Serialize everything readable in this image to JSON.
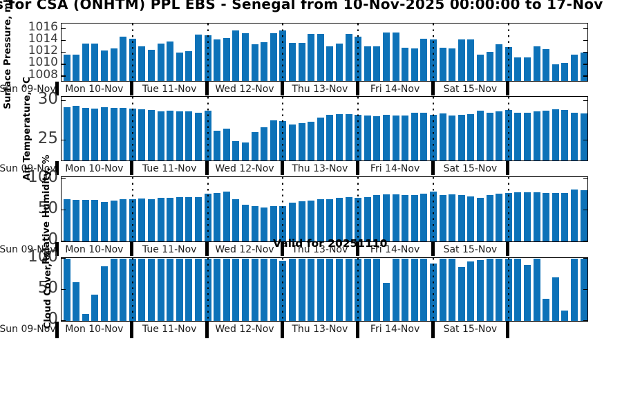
{
  "title": "s for CSA (ONHTM) PPL EBS  - Senegal from 10-Nov-2025 00:00:00 to 17-Nov",
  "valid_label": "Valid for 20251110",
  "colors": {
    "bar": "#0d72b8",
    "axis": "#000000",
    "tick_text": "#3d3d3d",
    "background": "#ffffff"
  },
  "x_axis": {
    "start_label": "Sun 09-Nov",
    "day_labels": [
      "Mon 10-Nov",
      "Tue 11-Nov",
      "Wed 12-Nov",
      "Thu 13-Nov",
      "Fri 14-Nov",
      "Sat 15-Nov"
    ],
    "interval_hours": 3,
    "bars_per_day": 8
  },
  "chart_data": [
    {
      "type": "bar",
      "ylabel": "Surface Pressure, mb",
      "yticks": [
        1008,
        1010,
        1012,
        1014,
        1016
      ],
      "ylim": [
        1007.2,
        1016.8
      ],
      "values": [
        1011.6,
        1011.6,
        1013.5,
        1013.5,
        1012.3,
        1012.7,
        1014.7,
        1014.3,
        1013.1,
        1012.5,
        1013.5,
        1013.9,
        1012.0,
        1012.2,
        1015.0,
        1014.9,
        1014.2,
        1014.4,
        1015.7,
        1015.3,
        1013.4,
        1013.8,
        1015.3,
        1015.7,
        1013.6,
        1013.6,
        1015.1,
        1015.1,
        1013.1,
        1013.5,
        1015.2,
        1014.7,
        1013.1,
        1013.1,
        1015.4,
        1015.4,
        1012.8,
        1012.7,
        1014.3,
        1014.2,
        1012.8,
        1012.7,
        1014.2,
        1014.2,
        1011.6,
        1012.1,
        1013.4,
        1012.9,
        1011.2,
        1011.2,
        1013.0,
        1012.6,
        1010.0,
        1010.2,
        1011.7,
        1012.0
      ]
    },
    {
      "type": "bar",
      "ylabel": "Air Temperature, °C",
      "yticks": [
        25,
        30
      ],
      "ylim": [
        22.4,
        30.4
      ],
      "values": [
        29.2,
        29.3,
        29.1,
        29.0,
        29.2,
        29.1,
        29.1,
        29.0,
        28.9,
        28.8,
        28.6,
        28.7,
        28.6,
        28.6,
        28.5,
        28.7,
        26.2,
        26.4,
        24.9,
        24.7,
        26.0,
        26.6,
        27.5,
        27.4,
        27.0,
        27.1,
        27.3,
        27.8,
        28.2,
        28.3,
        28.3,
        28.2,
        28.1,
        28.0,
        28.2,
        28.1,
        28.1,
        28.5,
        28.5,
        28.2,
        28.4,
        28.1,
        28.2,
        28.3,
        28.7,
        28.5,
        28.6,
        28.8,
        28.5,
        28.5,
        28.6,
        28.7,
        28.9,
        28.8,
        28.5,
        28.4
      ]
    },
    {
      "type": "bar",
      "ylabel": "Relative Humidity, %",
      "yticks": [
        0,
        50,
        100
      ],
      "ylim": [
        0,
        102
      ],
      "values": [
        67,
        66,
        66,
        66,
        63,
        65,
        67,
        67,
        69,
        68,
        70,
        70,
        71,
        71,
        71,
        76,
        78,
        80,
        67,
        59,
        56,
        54,
        56,
        57,
        62,
        64,
        65,
        67,
        68,
        70,
        71,
        70,
        71,
        74,
        75,
        75,
        74,
        74,
        76,
        80,
        74,
        75,
        74,
        72,
        70,
        74,
        76,
        78,
        79,
        79,
        79,
        78,
        77,
        78,
        83,
        82
      ]
    },
    {
      "type": "bar",
      "ylabel": "Cloud Cover, %",
      "yticks": [
        0,
        50,
        100
      ],
      "ylim": [
        0,
        100
      ],
      "values": [
        100,
        62,
        11,
        42,
        88,
        100,
        100,
        100,
        100,
        100,
        100,
        100,
        100,
        100,
        100,
        100,
        100,
        100,
        100,
        100,
        100,
        100,
        100,
        97,
        100,
        100,
        100,
        100,
        100,
        100,
        100,
        100,
        100,
        100,
        61,
        100,
        100,
        100,
        100,
        92,
        100,
        100,
        87,
        95,
        98,
        100,
        100,
        100,
        100,
        90,
        100,
        35,
        70,
        17,
        100,
        100
      ]
    }
  ]
}
